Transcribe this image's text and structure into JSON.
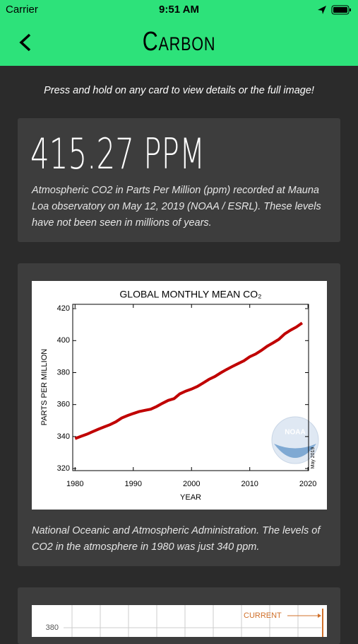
{
  "status_bar": {
    "carrier": "Carrier",
    "time": "9:51 AM"
  },
  "header": {
    "title": "Carbon"
  },
  "instructions": "Press and hold on any card to view details or the full image!",
  "cards": [
    {
      "headline": "415.27 PPM",
      "description": "Atmospheric CO2 in Parts Per Million (ppm) recorded at Mauna Loa observatory on May 12, 2019 (NOAA / ESRL). These levels have not been seen in millions of years."
    },
    {
      "chart_data": {
        "type": "line",
        "title": "GLOBAL MONTHLY MEAN CO₂",
        "x_label": "YEAR",
        "y_label": "PARTS PER MILLION",
        "annotations": [
          "NOAA",
          "May 2019"
        ],
        "color": "#c00000",
        "x": [
          1980,
          1981,
          1982,
          1983,
          1984,
          1985,
          1986,
          1987,
          1988,
          1989,
          1990,
          1991,
          1992,
          1993,
          1994,
          1995,
          1996,
          1997,
          1998,
          1999,
          2000,
          2001,
          2002,
          2003,
          2004,
          2005,
          2006,
          2007,
          2008,
          2009,
          2010,
          2011,
          2012,
          2013,
          2014,
          2015,
          2016,
          2017,
          2018,
          2019
        ],
        "values": [
          338.7,
          340.1,
          341.4,
          343.0,
          344.6,
          346.0,
          347.4,
          349.2,
          351.6,
          353.1,
          354.4,
          355.6,
          356.4,
          357.1,
          358.8,
          360.8,
          362.6,
          363.7,
          366.7,
          368.4,
          369.7,
          371.3,
          373.5,
          375.8,
          377.5,
          379.8,
          381.9,
          383.8,
          385.6,
          387.4,
          389.9,
          391.6,
          393.9,
          396.5,
          398.6,
          400.8,
          404.2,
          406.5,
          408.5,
          411.0
        ],
        "xlim": [
          1979.6,
          2020.1
        ],
        "ylim": [
          318.7,
          422.7
        ],
        "xticks": [
          1980,
          1990,
          2000,
          2010,
          2020
        ],
        "yticks": [
          320,
          340,
          360,
          380,
          400,
          420
        ]
      },
      "caption": "National Oceanic and Atmospheric Administration. The levels of CO2 in the atmosphere in 1980 was just 340 ppm."
    },
    {
      "chart": {
        "yticks": [
          380
        ],
        "annotation": "CURRENT"
      }
    }
  ]
}
